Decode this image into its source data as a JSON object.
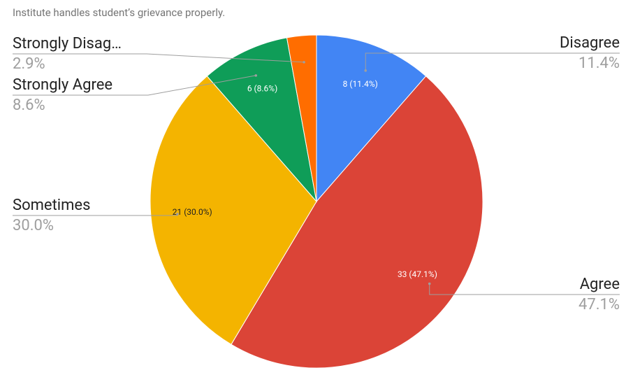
{
  "chart_data": {
    "type": "pie",
    "title": "Institute handles student’s grievance properly.",
    "categories": [
      "Disagree",
      "Agree",
      "Sometimes",
      "Strongly Agree",
      "Strongly Disag…"
    ],
    "values": [
      8,
      33,
      21,
      6,
      2
    ],
    "value_labels": [
      "8 (11.4%)",
      "33 (47.1%)",
      "21 (30.0%)",
      "6 (8.6%)",
      null
    ],
    "percent_labels": [
      "11.4%",
      "47.1%",
      "30.0%",
      "8.6%",
      "2.9%"
    ],
    "colors": [
      "#4285f4",
      "#db4437",
      "#f4b400",
      "#0f9d58",
      "#ff6d00"
    ]
  }
}
